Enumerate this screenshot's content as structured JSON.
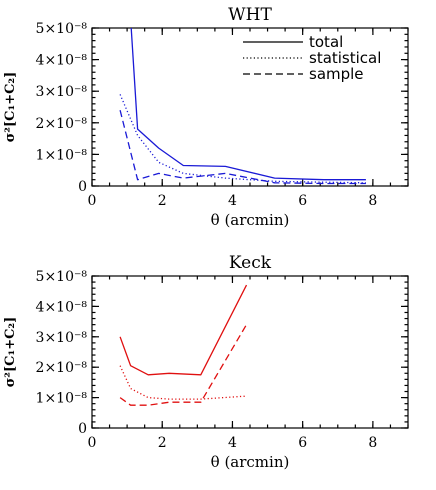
{
  "chart_data": [
    {
      "type": "line",
      "title": "WHT",
      "xlabel": "θ (arcmin)",
      "ylabel": "σ²[C₁+C₂]",
      "xlim": [
        0,
        9
      ],
      "ylim": [
        0,
        5e-08
      ],
      "xticks": [
        0,
        2,
        4,
        6,
        8
      ],
      "xtick_labels": [
        "0",
        "2",
        "4",
        "6",
        "8"
      ],
      "yticks": [
        0,
        1e-08,
        2e-08,
        3e-08,
        4e-08,
        5e-08
      ],
      "ytick_labels": [
        "0",
        "1×10⁻⁸",
        "2×10⁻⁸",
        "3×10⁻⁸",
        "4×10⁻⁸",
        "5×10⁻⁸"
      ],
      "color": "#1a1ad6",
      "legend_position": "top-right",
      "series": [
        {
          "name": "total",
          "style": "solid",
          "x": [
            1.1,
            1.3,
            1.9,
            2.6,
            3.8,
            5.2,
            6.6,
            7.8
          ],
          "y": [
            5.3e-08,
            1.8e-08,
            1.2e-08,
            6.5e-09,
            6.2e-09,
            2.5e-09,
            2e-09,
            2e-09
          ]
        },
        {
          "name": "statistical",
          "style": "dotted",
          "x": [
            0.8,
            1.3,
            1.9,
            2.6,
            3.8,
            5.2,
            6.6,
            7.8
          ],
          "y": [
            2.9e-08,
            1.6e-08,
            7.5e-09,
            4e-09,
            2.5e-09,
            1.5e-09,
            1.2e-09,
            1e-09
          ]
        },
        {
          "name": "sample",
          "style": "dashed",
          "x": [
            0.8,
            1.3,
            1.9,
            2.6,
            3.8,
            5.2,
            6.6,
            7.8
          ],
          "y": [
            2.4e-08,
            2e-09,
            4e-09,
            2.5e-09,
            4e-09,
            1e-09,
            8e-10,
            8e-10
          ]
        }
      ]
    },
    {
      "type": "line",
      "title": "Keck",
      "xlabel": "θ (arcmin)",
      "ylabel": "σ²[C₁+C₂]",
      "xlim": [
        0,
        9
      ],
      "ylim": [
        0,
        5e-08
      ],
      "xticks": [
        0,
        2,
        4,
        6,
        8
      ],
      "xtick_labels": [
        "0",
        "2",
        "4",
        "6",
        "8"
      ],
      "yticks": [
        0,
        1e-08,
        2e-08,
        3e-08,
        4e-08,
        5e-08
      ],
      "ytick_labels": [
        "0",
        "1×10⁻⁸",
        "2×10⁻⁸",
        "3×10⁻⁸",
        "4×10⁻⁸",
        "5×10⁻⁸"
      ],
      "color": "#e01010",
      "series": [
        {
          "name": "total",
          "style": "solid",
          "x": [
            0.8,
            1.1,
            1.6,
            2.2,
            3.1,
            4.4
          ],
          "y": [
            3e-08,
            2.05e-08,
            1.75e-08,
            1.8e-08,
            1.75e-08,
            4.7e-08
          ]
        },
        {
          "name": "statistical",
          "style": "dotted",
          "x": [
            0.8,
            1.1,
            1.6,
            2.2,
            3.1,
            4.4
          ],
          "y": [
            2.05e-08,
            1.3e-08,
            1e-08,
            9.5e-09,
            9.5e-09,
            1.05e-08
          ]
        },
        {
          "name": "sample",
          "style": "dashed",
          "x": [
            0.8,
            1.1,
            1.6,
            2.2,
            3.1,
            4.4
          ],
          "y": [
            1e-08,
            7.5e-09,
            7.5e-09,
            8.5e-09,
            8.5e-09,
            3.4e-08
          ]
        }
      ]
    }
  ]
}
